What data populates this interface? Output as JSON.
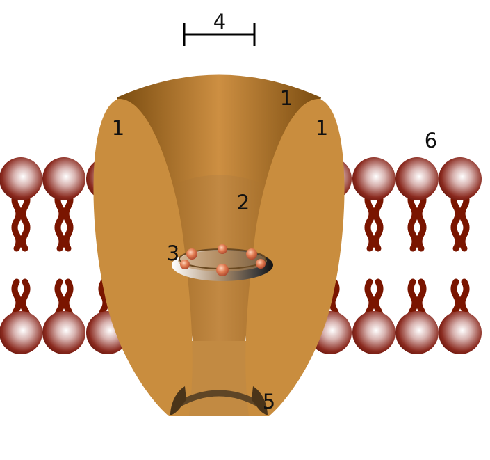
{
  "labels": {
    "channel_top": "1",
    "domain_left": "1",
    "domain_right": "1",
    "pore": "2",
    "selectivity_filter": "3",
    "scale_bar": "4",
    "gate": "5",
    "membrane": "6"
  },
  "colors": {
    "protein": "#c98d3e",
    "protein_dark": "#8a5a17",
    "lipid_head": "#7a1f12",
    "lipid_tail": "#7a1500",
    "ring_dark": "#1a1a1a",
    "gate": "#5e4526"
  }
}
